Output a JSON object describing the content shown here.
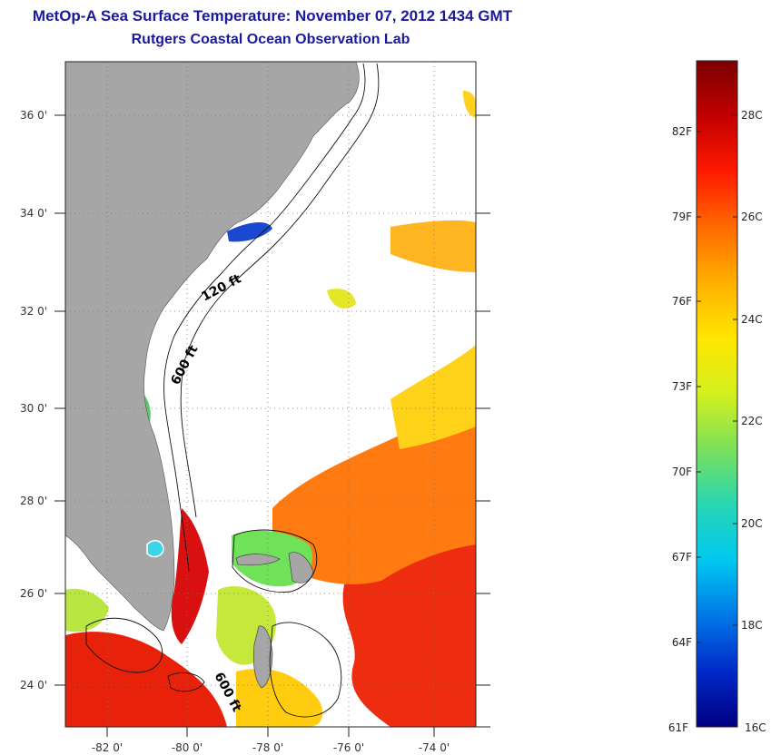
{
  "header": {
    "title": "MetOp-A Sea Surface Temperature:  November 07, 2012 1434 GMT",
    "subtitle": "Rutgers Coastal Ocean Observation Lab"
  },
  "map": {
    "lat_ticks": [
      "36 0'",
      "34 0'",
      "32 0'",
      "30 0'",
      "28 0'",
      "26 0'",
      "24 0'"
    ],
    "lon_ticks": [
      "-82 0'",
      "-80 0'",
      "-78 0'",
      "-76 0'",
      "-74 0'"
    ],
    "contour_labels": [
      "120 ft",
      "600 ft",
      "600 ft"
    ],
    "land_color": "#a6a6a6",
    "ocean_nodata_color": "#ffffff"
  },
  "colorbar": {
    "fahrenheit_labels": [
      "82F",
      "79F",
      "76F",
      "73F",
      "70F",
      "67F",
      "64F",
      "61F"
    ],
    "celsius_labels": [
      "28C",
      "26C",
      "24C",
      "22C",
      "20C",
      "18C",
      "16C"
    ],
    "colors": [
      "#7a0000",
      "#c20000",
      "#ff1a00",
      "#ff6a00",
      "#ffb000",
      "#ffe600",
      "#d4f01e",
      "#7ae05a",
      "#28d6b4",
      "#00c8f0",
      "#0078e6",
      "#0028c8",
      "#000080"
    ]
  }
}
